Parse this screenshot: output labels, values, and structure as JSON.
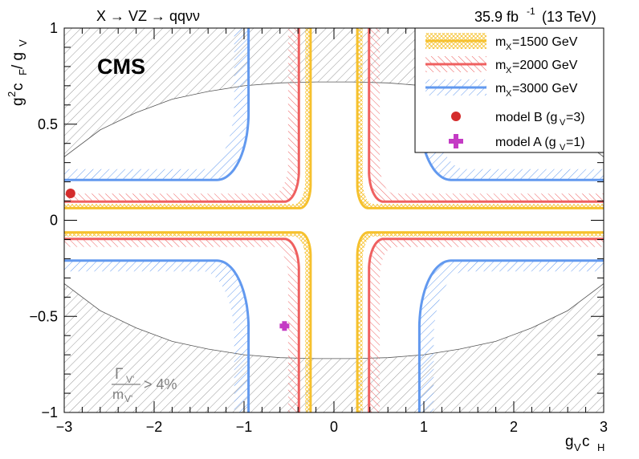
{
  "header": {
    "process": "X → VZ → qqνν",
    "lumi_value": "35.9 fb",
    "lumi_exp": "-1",
    "energy": "(13 TeV)"
  },
  "cms_label": "CMS",
  "width_annotation": {
    "numerator": "Γ",
    "numerator_sub": "V'",
    "denominator": "m",
    "denominator_sub": "V'",
    "relation": "> 4%"
  },
  "axes": {
    "x_title_main": "g",
    "x_title_sub1": "V",
    "x_title_mid": " c",
    "x_title_sub2": "H",
    "y_title_main": "g",
    "y_title_sup": "2",
    "y_title_mid": " c",
    "y_title_sub1": "F",
    "y_title_slash": " / g",
    "y_title_sub2": "V"
  },
  "legend": {
    "m1500": {
      "label": "m",
      "sub": "X",
      "rest": "=1500 GeV"
    },
    "m2000": {
      "label": "m",
      "sub": "X",
      "rest": "=2000 GeV"
    },
    "m3000": {
      "label": "m",
      "sub": "X",
      "rest": "=3000 GeV"
    },
    "modelB": {
      "label": "model B (g",
      "sub": "V",
      "rest": "=3)"
    },
    "modelA": {
      "label": "model A (g",
      "sub": "V",
      "rest": "=1)"
    }
  },
  "colors": {
    "m1500": "#f6c12d",
    "m2000": "#ef6060",
    "m3000": "#6299ef",
    "modelB": "#d42c2c",
    "modelA": "#c43bc4",
    "width_region": "#808080"
  },
  "chart_data": {
    "type": "line",
    "xlim": [
      -3.0,
      3.0
    ],
    "ylim": [
      -1.0,
      1.0
    ],
    "x_ticks": [
      -3,
      -2,
      -1,
      0,
      1,
      2,
      3
    ],
    "x_tick_labels": [
      "−3",
      "−2",
      "−1",
      "0",
      "1",
      "2",
      "3"
    ],
    "y_ticks": [
      -1,
      -0.5,
      0,
      0.5,
      1
    ],
    "y_tick_labels": [
      "−1",
      "−0.5",
      "0",
      "0.5",
      "1"
    ],
    "series": [
      {
        "name": "mX=1500 GeV",
        "color_key": "m1500",
        "vertical_x": 0.26,
        "horizontal_y": 0.063,
        "knee": 0.12,
        "hatch_width": 0.06
      },
      {
        "name": "mX=2000 GeV",
        "color_key": "m2000",
        "vertical_x": 0.39,
        "horizontal_y": 0.097,
        "knee": 0.16,
        "hatch_width": 0.12
      },
      {
        "name": "mX=3000 GeV",
        "color_key": "m3000",
        "vertical_x": 0.95,
        "horizontal_y": 0.21,
        "knee": 0.35,
        "hatch_width": 0.16
      }
    ],
    "points": [
      {
        "name": "model B (gV=3)",
        "color_key": "modelB",
        "x": -2.93,
        "y": 0.14,
        "marker": "circle"
      },
      {
        "name": "model A (gV=1)",
        "color_key": "modelA",
        "x": -0.55,
        "y": -0.55,
        "marker": "plus"
      }
    ],
    "width_boundary": {
      "x": [
        -3.0,
        -2.6,
        -2.2,
        -1.8,
        -1.4,
        -1.0,
        -0.6,
        -0.2,
        0.2,
        0.6,
        1.0,
        1.4,
        1.8,
        2.2,
        2.6,
        3.0
      ],
      "y": [
        0.33,
        0.47,
        0.56,
        0.63,
        0.67,
        0.7,
        0.715,
        0.72,
        0.72,
        0.715,
        0.7,
        0.67,
        0.63,
        0.56,
        0.47,
        0.33
      ]
    },
    "legend_position": "top-right",
    "grid": false
  }
}
